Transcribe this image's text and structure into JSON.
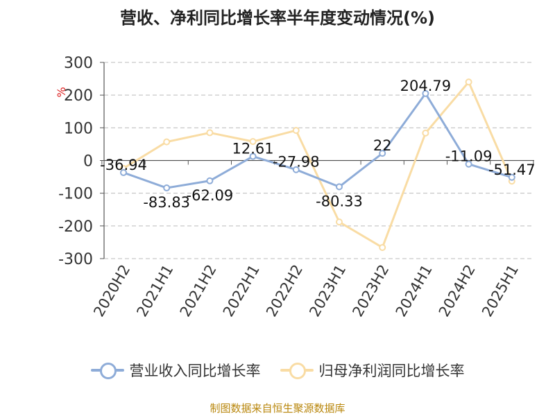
{
  "chart_data": {
    "type": "line",
    "title": "营收、净利同比增长率半年度变动情况(%)",
    "ylabel": "%",
    "xlabel": "",
    "categories": [
      "2020H2",
      "2021H1",
      "2021H2",
      "2022H1",
      "2022H2",
      "2023H1",
      "2023H2",
      "2024H1",
      "2024H2",
      "2025H1"
    ],
    "ylim": [
      -300,
      300
    ],
    "yticks": [
      300,
      200,
      100,
      0,
      -100,
      -200,
      -300
    ],
    "ytick_labels": [
      "300",
      "200",
      "100",
      "0",
      "-100",
      "-200",
      "-300"
    ],
    "grid": true,
    "legend_position": "bottom",
    "series": [
      {
        "name": "营业收入同比增长率",
        "color": "#8eacd8",
        "values": [
          -36.94,
          -83.83,
          -62.09,
          12.61,
          -27.98,
          -80.33,
          22,
          204.79,
          -11.09,
          -51.47
        ],
        "labels": [
          "-36.94",
          "-83.83",
          "-62.09",
          "12.61",
          "-27.98",
          "-80.33",
          "22",
          "204.79",
          "-11.09",
          "-51.47"
        ]
      },
      {
        "name": "归母净利润同比增长率",
        "color": "#f9dca4",
        "values": [
          -24,
          57,
          85,
          58,
          92,
          -188,
          -266,
          84,
          240,
          -63
        ]
      }
    ]
  },
  "source": "制图数据来自恒生聚源数据库"
}
